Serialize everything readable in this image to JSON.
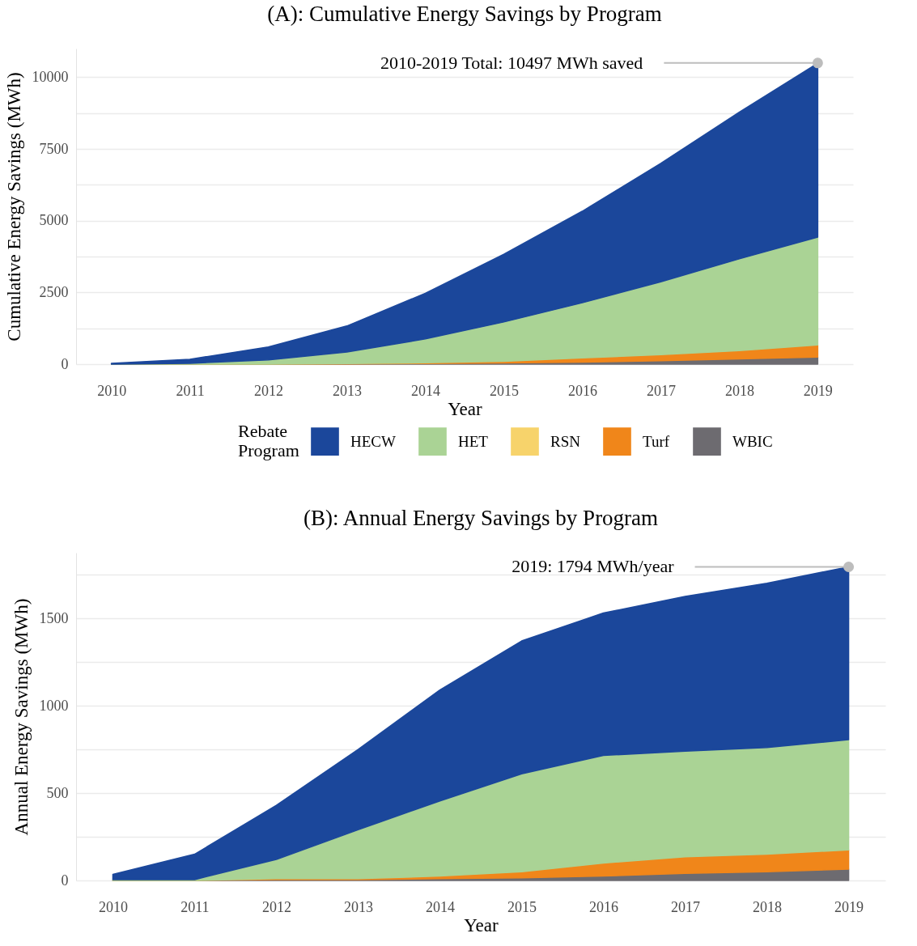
{
  "chart_data": [
    {
      "type": "area",
      "title": "(A): Cumulative Energy Savings by Program",
      "xlabel": "Year",
      "ylabel": "Cumulative Energy Savings (MWh)",
      "legend_title": "Rebate Program",
      "stacked": true,
      "legend": "bottom",
      "grid": "y",
      "x": [
        2010,
        2011,
        2012,
        2013,
        2014,
        2015,
        2016,
        2017,
        2018,
        2019
      ],
      "xlim": [
        2009.55,
        2019.45
      ],
      "xticks": [
        2010,
        2011,
        2012,
        2013,
        2014,
        2015,
        2016,
        2017,
        2018,
        2019
      ],
      "ylim": [
        0,
        11000
      ],
      "yticks": [
        0,
        {
          "value": 1250,
          "label": null
        },
        2500,
        {
          "value": 3750,
          "label": null
        },
        5000,
        {
          "value": 6250,
          "label": null
        },
        7500,
        {
          "value": 8750,
          "label": null
        },
        10000
      ],
      "series": [
        {
          "name": "WBIC",
          "color": "#6d6b70",
          "values": [
            0,
            0,
            0,
            10,
            20,
            40,
            70,
            120,
            180,
            250
          ]
        },
        {
          "name": "Turf",
          "color": "#f0861a",
          "values": [
            0,
            0,
            0,
            10,
            30,
            60,
            150,
            210,
            290,
            420
          ]
        },
        {
          "name": "RSN",
          "color": "#f7d36b",
          "values": [
            null,
            null,
            null,
            null,
            null,
            null,
            null,
            null,
            null,
            null
          ]
        },
        {
          "name": "HET",
          "color": "#aad395",
          "values": [
            0,
            30,
            150,
            400,
            830,
            1370,
            1920,
            2540,
            3200,
            3760
          ]
        },
        {
          "name": "HECW",
          "color": "#1b479b",
          "values": [
            30,
            140,
            450,
            910,
            1590,
            2360,
            3190,
            4130,
            5110,
            6060
          ]
        }
      ],
      "annotations": [
        {
          "text": "2010-2019 Total: 10497 MWh saved",
          "x": 2019,
          "y": 10497
        }
      ]
    },
    {
      "type": "area",
      "title": "(B): Annual Energy Savings by Program",
      "xlabel": "Year",
      "ylabel": "Annual Energy Savings (MWh)",
      "stacked": true,
      "grid": "y",
      "x": [
        2010,
        2011,
        2012,
        2013,
        2014,
        2015,
        2016,
        2017,
        2018,
        2019
      ],
      "xlim": [
        2009.55,
        2019.45
      ],
      "xticks": [
        2010,
        2011,
        2012,
        2013,
        2014,
        2015,
        2016,
        2017,
        2018,
        2019
      ],
      "ylim": [
        0,
        1875
      ],
      "yticks": [
        0,
        {
          "value": 250,
          "label": null
        },
        500,
        {
          "value": 750,
          "label": null
        },
        1000,
        {
          "value": 1250,
          "label": null
        },
        1500,
        {
          "value": 1750,
          "label": null
        }
      ],
      "series": [
        {
          "name": "WBIC",
          "color": "#6d6b70",
          "values": [
            0,
            0,
            5,
            5,
            10,
            15,
            25,
            40,
            50,
            65
          ]
        },
        {
          "name": "Turf",
          "color": "#f0861a",
          "values": [
            0,
            0,
            5,
            5,
            15,
            35,
            75,
            95,
            100,
            110
          ]
        },
        {
          "name": "HET",
          "color": "#aad395",
          "values": [
            5,
            5,
            110,
            280,
            430,
            560,
            615,
            605,
            610,
            630
          ]
        },
        {
          "name": "HECW",
          "color": "#1b479b",
          "values": [
            30,
            145,
            310,
            460,
            635,
            760,
            815,
            885,
            940,
            989
          ]
        }
      ],
      "annotations": [
        {
          "text": "2019: 1794 MWh/year",
          "x": 2019,
          "y": 1794
        }
      ]
    }
  ]
}
